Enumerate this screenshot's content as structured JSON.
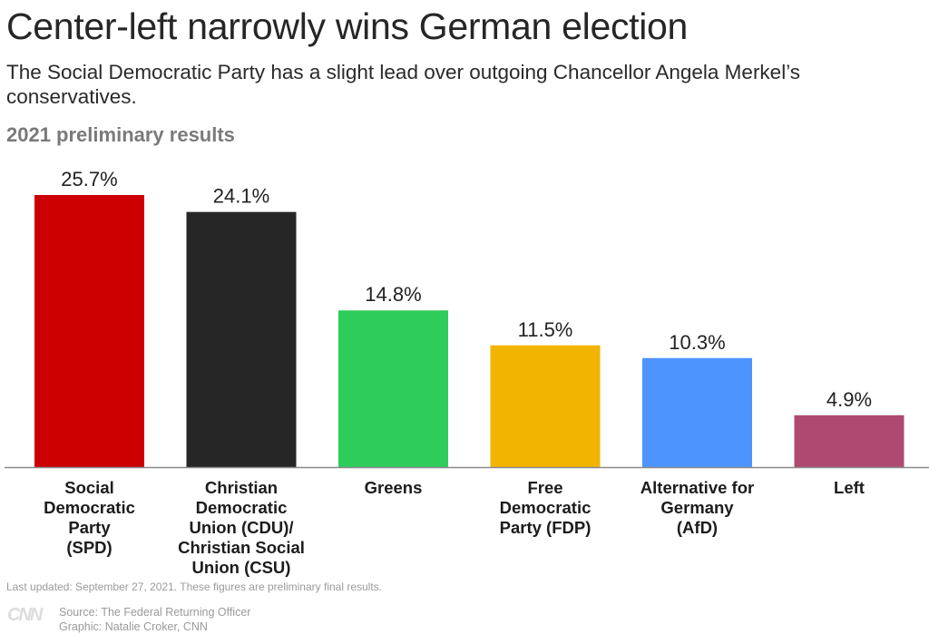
{
  "header": {
    "title": "Center-left narrowly wins German election",
    "subtitle": "The Social Democratic Party has a slight lead over outgoing Chancellor Angela Merkel’s conservatives.",
    "section_label": "2021 preliminary results"
  },
  "chart_data": {
    "type": "bar",
    "title": "2021 preliminary results",
    "xlabel": "",
    "ylabel": "",
    "ylim": [
      0,
      25.7
    ],
    "grid": false,
    "categories": [
      "Social Democratic Party (SPD)",
      "Christian Democratic Union (CDU)/ Christian Social Union (CSU)",
      "Greens",
      "Free Democratic Party (FDP)",
      "Alternative for Germany (AfD)",
      "Left"
    ],
    "category_lines": [
      [
        "Social",
        "Democratic",
        "Party",
        "(SPD)"
      ],
      [
        "Christian Democratic",
        "Union (CDU)/",
        "Christian Social",
        "Union (CSU)"
      ],
      [
        "Greens"
      ],
      [
        "Free",
        "Democratic",
        "Party (FDP)"
      ],
      [
        "Alternative for",
        "Germany",
        "(AfD)"
      ],
      [
        "Left"
      ]
    ],
    "values": [
      25.7,
      24.1,
      14.8,
      11.5,
      10.3,
      4.9
    ],
    "value_labels": [
      "25.7%",
      "24.1%",
      "14.8%",
      "11.5%",
      "10.3%",
      "4.9%"
    ],
    "colors": [
      "#cc0000",
      "#262626",
      "#2ecc5a",
      "#f2b400",
      "#4d94ff",
      "#ae4a72"
    ]
  },
  "footer": {
    "note": "Last updated: September 27, 2021. These figures are preliminary final results.",
    "logo": "CNN",
    "source": "Source: The Federal Returning Officer",
    "graphic": "Graphic: Natalie Croker, CNN"
  }
}
